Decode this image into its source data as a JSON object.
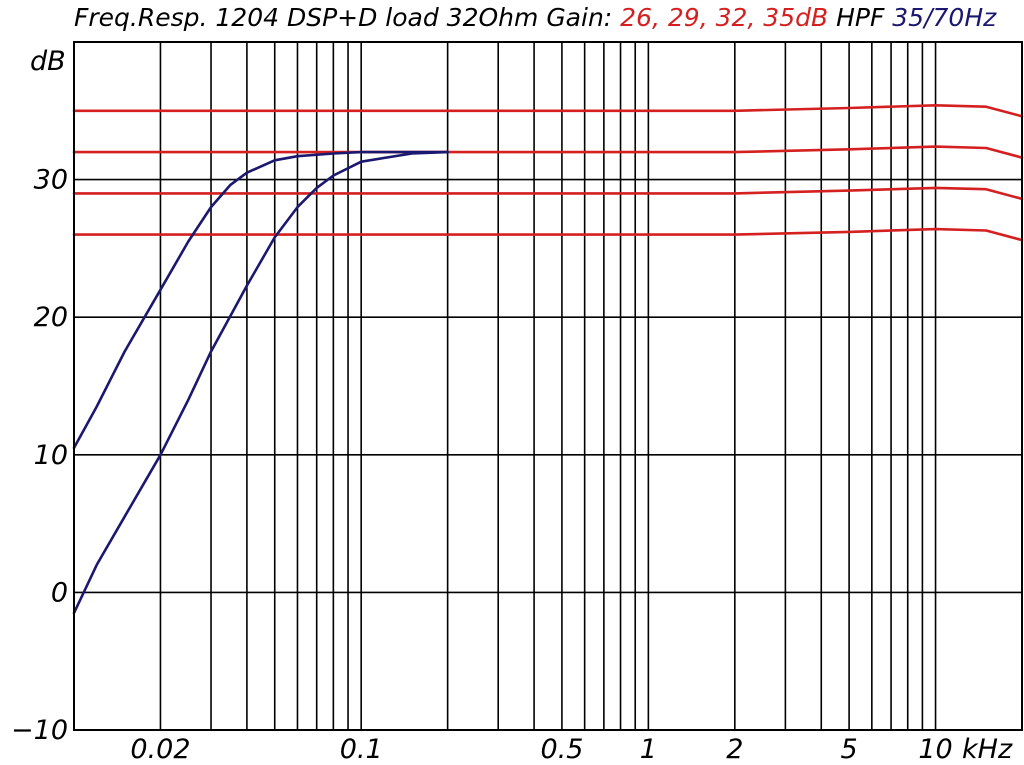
{
  "title": {
    "prefix": "Freq.Resp. 1204 DSP+D load 32Ohm Gain: ",
    "gains": "26, 29, 32, 35dB",
    "hpf_label": " HPF ",
    "hpf_values": "35/70Hz"
  },
  "colors": {
    "gain_curves": "#d42020",
    "hpf_curves": "#1c1870",
    "grid": "#000000",
    "title_black": "#000000"
  },
  "chart_data": {
    "type": "line",
    "title": "Freq.Resp. 1204 DSP+D load 32Ohm Gain: 26, 29, 32, 35dB HPF 35/70Hz",
    "xlabel": "kHz",
    "ylabel": "dB",
    "x_scale": "log",
    "xlim": [
      0.01,
      20
    ],
    "ylim": [
      -10,
      40
    ],
    "grid": true,
    "y_ticks": [
      {
        "value": -10,
        "label": "−10"
      },
      {
        "value": 0,
        "label": "0"
      },
      {
        "value": 10,
        "label": "10"
      },
      {
        "value": 20,
        "label": "20"
      },
      {
        "value": 30,
        "label": "30"
      }
    ],
    "x_ticks": [
      {
        "value": 0.02,
        "label": "0.02"
      },
      {
        "value": 0.1,
        "label": "0.1"
      },
      {
        "value": 0.5,
        "label": "0.5"
      },
      {
        "value": 1,
        "label": "1"
      },
      {
        "value": 2,
        "label": "2"
      },
      {
        "value": 5,
        "label": "5"
      },
      {
        "value": 10,
        "label": "10"
      }
    ],
    "x_gridlines": [
      0.02,
      0.03,
      0.04,
      0.05,
      0.06,
      0.07,
      0.08,
      0.09,
      0.1,
      0.2,
      0.3,
      0.4,
      0.5,
      0.6,
      0.7,
      0.8,
      0.9,
      1,
      2,
      3,
      4,
      5,
      6,
      7,
      8,
      9,
      10,
      20
    ],
    "y_gridlines": [
      0,
      10,
      20,
      30,
      40
    ],
    "series": [
      {
        "name": "35dB",
        "color": "#d42020",
        "x": [
          0.01,
          0.1,
          1,
          2,
          5,
          10,
          15,
          20
        ],
        "y": [
          35.0,
          35.0,
          35.0,
          35.0,
          35.2,
          35.4,
          35.3,
          34.6
        ]
      },
      {
        "name": "32dB",
        "color": "#d42020",
        "x": [
          0.01,
          0.1,
          1,
          2,
          5,
          10,
          15,
          20
        ],
        "y": [
          32.0,
          32.0,
          32.0,
          32.0,
          32.2,
          32.4,
          32.3,
          31.6
        ]
      },
      {
        "name": "29dB",
        "color": "#d42020",
        "x": [
          0.01,
          0.1,
          1,
          2,
          5,
          10,
          15,
          20
        ],
        "y": [
          29.0,
          29.0,
          29.0,
          29.0,
          29.2,
          29.4,
          29.3,
          28.6
        ]
      },
      {
        "name": "26dB",
        "color": "#d42020",
        "x": [
          0.01,
          0.1,
          1,
          2,
          5,
          10,
          15,
          20
        ],
        "y": [
          26.0,
          26.0,
          26.0,
          26.0,
          26.2,
          26.4,
          26.3,
          25.6
        ]
      },
      {
        "name": "HPF 35Hz",
        "color": "#1c1870",
        "x": [
          0.01,
          0.012,
          0.015,
          0.02,
          0.025,
          0.03,
          0.035,
          0.04,
          0.05,
          0.06,
          0.08,
          0.1,
          0.15,
          0.2
        ],
        "y": [
          10.5,
          13.5,
          17.5,
          22.0,
          25.5,
          28.0,
          29.6,
          30.5,
          31.4,
          31.7,
          31.9,
          32.0,
          32.0,
          32.0
        ]
      },
      {
        "name": "HPF 70Hz",
        "color": "#1c1870",
        "x": [
          0.01,
          0.012,
          0.015,
          0.02,
          0.025,
          0.03,
          0.04,
          0.05,
          0.06,
          0.07,
          0.08,
          0.1,
          0.15,
          0.2
        ],
        "y": [
          -1.5,
          2.0,
          5.5,
          10.0,
          14.0,
          17.5,
          22.3,
          25.8,
          28.0,
          29.4,
          30.3,
          31.3,
          31.9,
          32.0
        ]
      }
    ]
  }
}
